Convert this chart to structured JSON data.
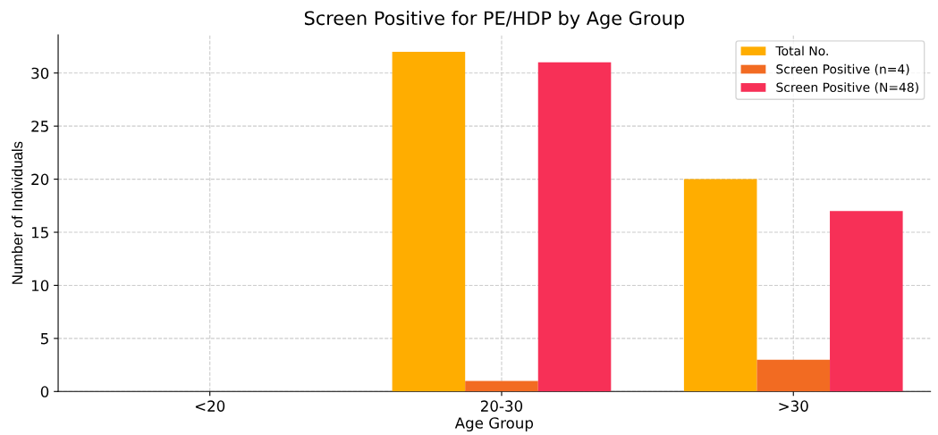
{
  "chart_data": {
    "type": "bar",
    "title": "Screen Positive for PE/HDP by Age Group",
    "xlabel": "Age Group",
    "ylabel": "Number of Individuals",
    "categories": [
      "<20",
      "20-30",
      ">30"
    ],
    "series": [
      {
        "name": "Total No.",
        "color": "#ffad00",
        "values": [
          0,
          32,
          20
        ]
      },
      {
        "name": "Screen Positive (n=4)",
        "color": "#f26b22",
        "values": [
          0,
          1,
          3
        ]
      },
      {
        "name": "Screen Positive (N=48)",
        "color": "#f73057",
        "values": [
          0,
          31,
          17
        ]
      }
    ],
    "ylim": [
      0,
      33.6
    ],
    "yticks": [
      0,
      5,
      10,
      15,
      20,
      25,
      30
    ],
    "grid": true,
    "legend": "top right"
  }
}
